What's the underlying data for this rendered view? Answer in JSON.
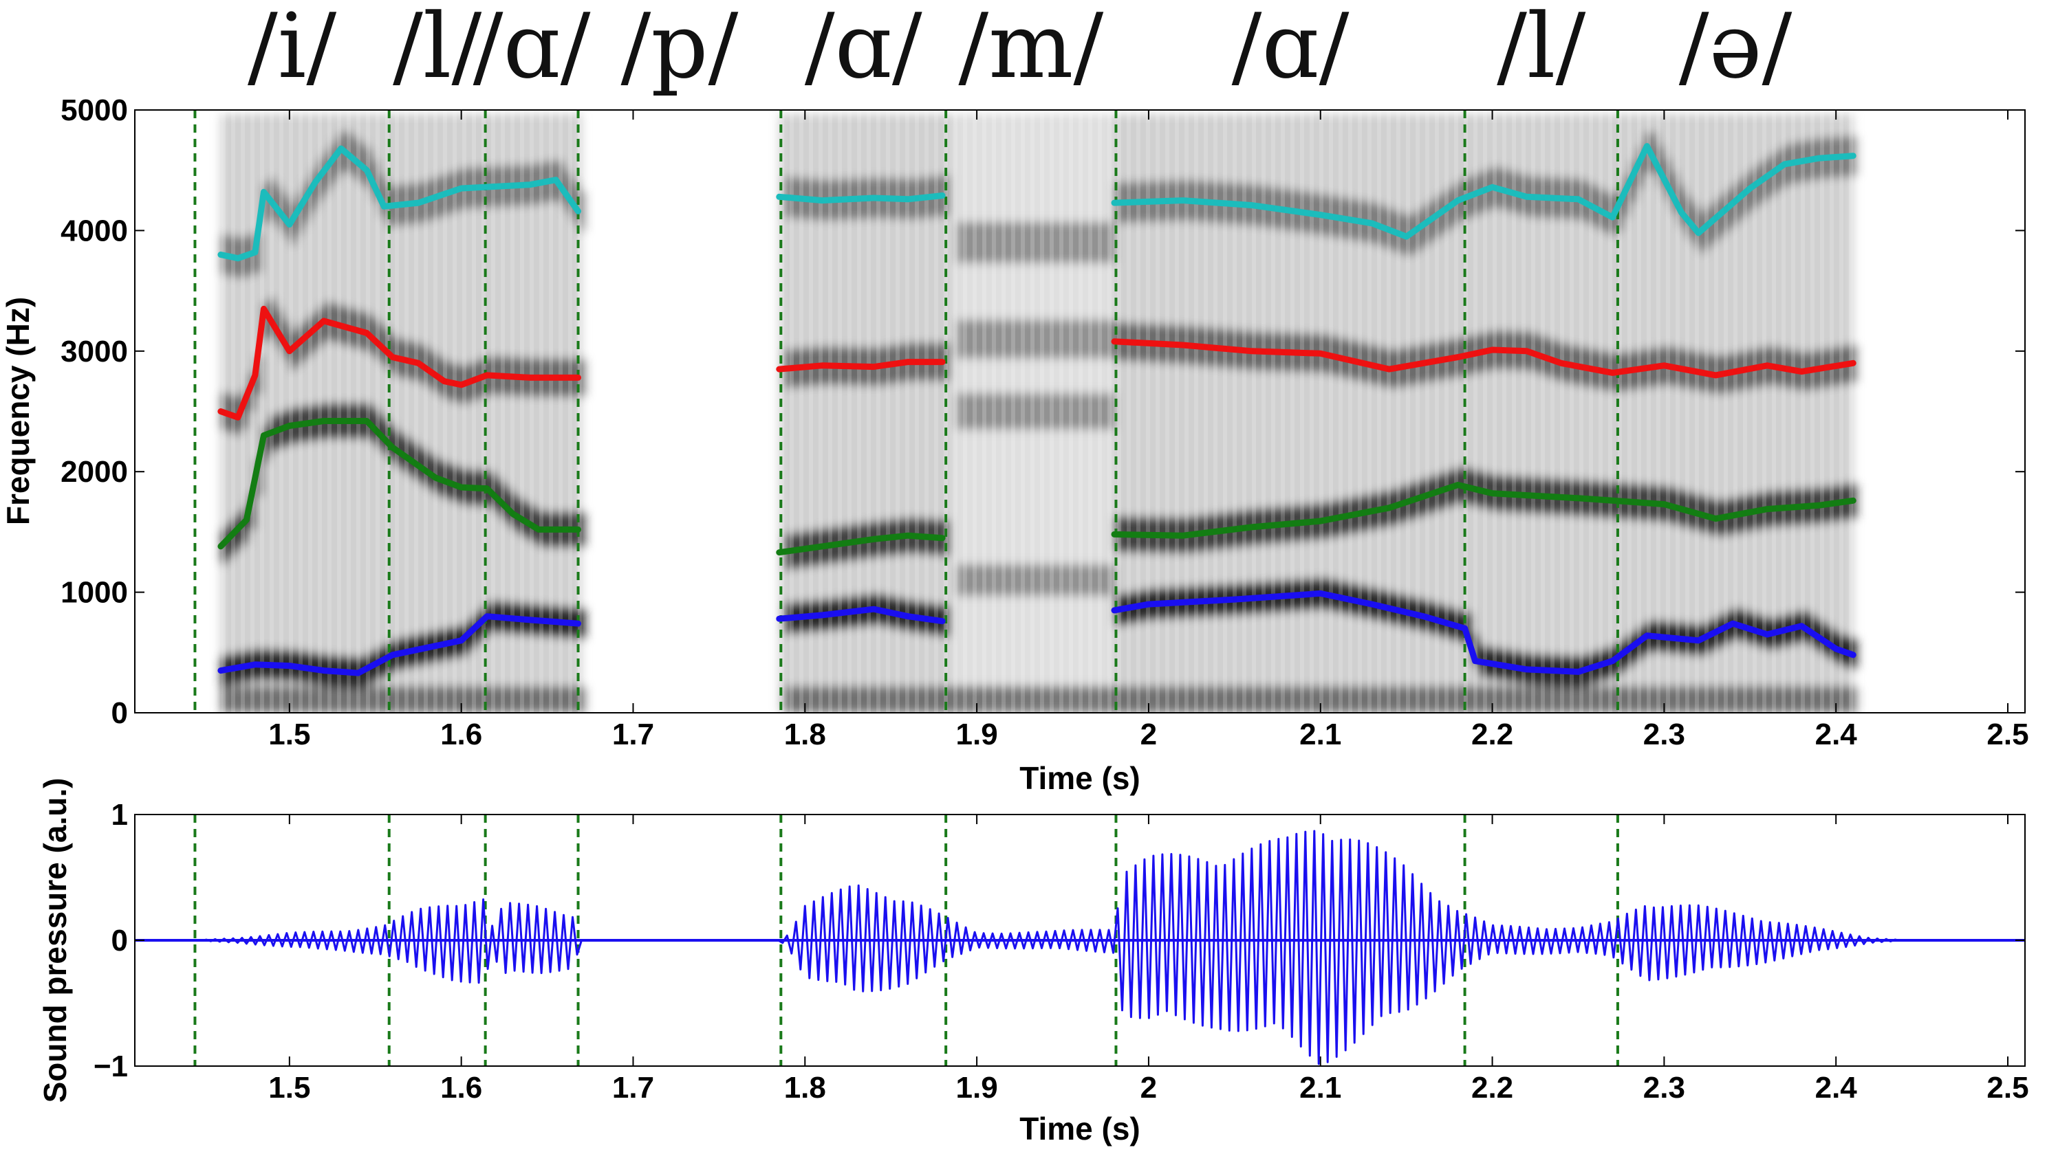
{
  "chart_data": [
    {
      "type": "heatmap",
      "title": "",
      "xlabel": "Time (s)",
      "ylabel": "Frequency (Hz)",
      "xlim": [
        1.41,
        2.51
      ],
      "ylim": [
        0,
        5000
      ],
      "xticks": [
        1.5,
        1.6,
        1.7,
        1.8,
        1.9,
        2,
        2.1,
        2.2,
        2.3,
        2.4,
        2.5
      ],
      "xtick_labels": [
        "1.5",
        "1.6",
        "1.7",
        "1.8",
        "1.9",
        "2",
        "2.1",
        "2.2",
        "2.3",
        "2.4",
        "2.5"
      ],
      "yticks": [
        0,
        1000,
        2000,
        3000,
        4000,
        5000
      ],
      "ytick_labels": [
        "0",
        "1000",
        "2000",
        "3000",
        "4000",
        "5000"
      ],
      "colormap": "grayscale",
      "voiced_regions": [
        [
          1.46,
          1.67
        ],
        [
          1.785,
          1.885
        ],
        [
          1.885,
          1.98
        ],
        [
          1.98,
          2.41
        ]
      ],
      "phonemes": [
        {
          "label": "/i/",
          "start": 1.445,
          "end": 1.558
        },
        {
          "label": "/l/",
          "start": 1.558,
          "end": 1.614
        },
        {
          "label": "/ɑ/",
          "start": 1.614,
          "end": 1.668
        },
        {
          "label": "/p/",
          "start": 1.668,
          "end": 1.786
        },
        {
          "label": "/ɑ/",
          "start": 1.786,
          "end": 1.882
        },
        {
          "label": "/m/",
          "start": 1.882,
          "end": 1.981
        },
        {
          "label": "/ɑ/",
          "start": 1.981,
          "end": 2.184
        },
        {
          "label": "/l/",
          "start": 2.184,
          "end": 2.273
        },
        {
          "label": "/ə/",
          "start": 2.273,
          "end": 2.41
        }
      ],
      "boundaries": [
        1.445,
        1.558,
        1.614,
        1.668,
        1.786,
        1.882,
        1.981,
        2.184,
        2.273
      ],
      "boundary_color": "#1a7a1a",
      "series": [
        {
          "color": "#1a0ff0",
          "segments": [
            [
              [
                1.46,
                350
              ],
              [
                1.48,
                400
              ],
              [
                1.5,
                390
              ],
              [
                1.52,
                350
              ],
              [
                1.54,
                330
              ],
              [
                1.56,
                480
              ],
              [
                1.58,
                540
              ],
              [
                1.6,
                600
              ],
              [
                1.615,
                800
              ],
              [
                1.64,
                770
              ],
              [
                1.668,
                740
              ]
            ],
            [
              [
                1.785,
                780
              ],
              [
                1.81,
                810
              ],
              [
                1.84,
                860
              ],
              [
                1.86,
                800
              ],
              [
                1.88,
                760
              ]
            ],
            [
              [
                1.98,
                850
              ],
              [
                2.0,
                900
              ],
              [
                2.05,
                940
              ],
              [
                2.1,
                990
              ],
              [
                2.13,
                900
              ],
              [
                2.16,
                800
              ],
              [
                2.184,
                700
              ],
              [
                2.19,
                430
              ],
              [
                2.22,
                360
              ],
              [
                2.25,
                340
              ],
              [
                2.27,
                430
              ],
              [
                2.29,
                640
              ],
              [
                2.32,
                600
              ],
              [
                2.34,
                740
              ],
              [
                2.36,
                650
              ],
              [
                2.38,
                720
              ],
              [
                2.4,
                530
              ],
              [
                2.41,
                480
              ]
            ]
          ]
        },
        {
          "color": "#137d13",
          "segments": [
            [
              [
                1.46,
                1380
              ],
              [
                1.475,
                1600
              ],
              [
                1.485,
                2300
              ],
              [
                1.5,
                2380
              ],
              [
                1.52,
                2420
              ],
              [
                1.545,
                2420
              ],
              [
                1.56,
                2200
              ],
              [
                1.585,
                1950
              ],
              [
                1.6,
                1870
              ],
              [
                1.615,
                1860
              ],
              [
                1.63,
                1650
              ],
              [
                1.645,
                1520
              ],
              [
                1.668,
                1520
              ]
            ],
            [
              [
                1.785,
                1330
              ],
              [
                1.81,
                1380
              ],
              [
                1.84,
                1440
              ],
              [
                1.86,
                1470
              ],
              [
                1.88,
                1450
              ]
            ],
            [
              [
                1.98,
                1480
              ],
              [
                2.02,
                1470
              ],
              [
                2.06,
                1540
              ],
              [
                2.1,
                1590
              ],
              [
                2.14,
                1700
              ],
              [
                2.18,
                1890
              ],
              [
                2.2,
                1820
              ],
              [
                2.25,
                1780
              ],
              [
                2.27,
                1760
              ],
              [
                2.3,
                1730
              ],
              [
                2.33,
                1610
              ],
              [
                2.36,
                1690
              ],
              [
                2.39,
                1720
              ],
              [
                2.41,
                1760
              ]
            ]
          ]
        },
        {
          "color": "#ee1111",
          "segments": [
            [
              [
                1.46,
                2500
              ],
              [
                1.47,
                2450
              ],
              [
                1.48,
                2800
              ],
              [
                1.485,
                3350
              ],
              [
                1.5,
                3000
              ],
              [
                1.52,
                3250
              ],
              [
                1.545,
                3150
              ],
              [
                1.56,
                2950
              ],
              [
                1.575,
                2900
              ],
              [
                1.59,
                2750
              ],
              [
                1.6,
                2720
              ],
              [
                1.615,
                2800
              ],
              [
                1.64,
                2780
              ],
              [
                1.668,
                2780
              ]
            ],
            [
              [
                1.785,
                2850
              ],
              [
                1.81,
                2880
              ],
              [
                1.84,
                2870
              ],
              [
                1.86,
                2910
              ],
              [
                1.88,
                2910
              ]
            ],
            [
              [
                1.98,
                3080
              ],
              [
                2.02,
                3050
              ],
              [
                2.06,
                3000
              ],
              [
                2.1,
                2980
              ],
              [
                2.14,
                2850
              ],
              [
                2.18,
                2950
              ],
              [
                2.2,
                3010
              ],
              [
                2.22,
                3000
              ],
              [
                2.24,
                2900
              ],
              [
                2.27,
                2820
              ],
              [
                2.3,
                2880
              ],
              [
                2.33,
                2800
              ],
              [
                2.36,
                2880
              ],
              [
                2.38,
                2830
              ],
              [
                2.41,
                2900
              ]
            ]
          ]
        },
        {
          "color": "#1cbcbc",
          "segments": [
            [
              [
                1.46,
                3800
              ],
              [
                1.47,
                3770
              ],
              [
                1.48,
                3820
              ],
              [
                1.485,
                4320
              ],
              [
                1.5,
                4050
              ],
              [
                1.515,
                4400
              ],
              [
                1.53,
                4680
              ],
              [
                1.545,
                4500
              ],
              [
                1.555,
                4200
              ],
              [
                1.575,
                4230
              ],
              [
                1.6,
                4350
              ],
              [
                1.64,
                4380
              ],
              [
                1.655,
                4420
              ],
              [
                1.668,
                4160
              ]
            ],
            [
              [
                1.785,
                4280
              ],
              [
                1.81,
                4250
              ],
              [
                1.84,
                4270
              ],
              [
                1.86,
                4260
              ],
              [
                1.88,
                4290
              ]
            ],
            [
              [
                1.98,
                4230
              ],
              [
                2.02,
                4250
              ],
              [
                2.06,
                4210
              ],
              [
                2.1,
                4130
              ],
              [
                2.13,
                4060
              ],
              [
                2.15,
                3950
              ],
              [
                2.18,
                4250
              ],
              [
                2.2,
                4360
              ],
              [
                2.22,
                4280
              ],
              [
                2.25,
                4260
              ],
              [
                2.27,
                4110
              ],
              [
                2.29,
                4700
              ],
              [
                2.31,
                4150
              ],
              [
                2.32,
                3980
              ],
              [
                2.35,
                4350
              ],
              [
                2.37,
                4550
              ],
              [
                2.39,
                4600
              ],
              [
                2.41,
                4620
              ]
            ]
          ]
        }
      ]
    },
    {
      "type": "line",
      "title": "",
      "xlabel": "Time (s)",
      "ylabel": "Sound pressure (a.u.)",
      "xlim": [
        1.41,
        2.51
      ],
      "ylim": [
        -1,
        1
      ],
      "xticks": [
        1.5,
        1.6,
        1.7,
        1.8,
        1.9,
        2,
        2.1,
        2.2,
        2.3,
        2.4,
        2.5
      ],
      "xtick_labels": [
        "1.5",
        "1.6",
        "1.7",
        "1.8",
        "1.9",
        "2",
        "2.1",
        "2.2",
        "2.3",
        "2.4",
        "2.5"
      ],
      "yticks": [
        -1,
        0,
        1
      ],
      "ytick_labels": [
        "−1",
        "0",
        "1"
      ],
      "boundaries": [
        1.445,
        1.558,
        1.614,
        1.668,
        1.786,
        1.882,
        1.981,
        2.184,
        2.273
      ],
      "boundary_color": "#1a7a1a",
      "series": [
        {
          "color": "#1a0ff0",
          "envelope": [
            [
              1.445,
              0.0
            ],
            [
              1.47,
              0.02
            ],
            [
              1.5,
              0.06
            ],
            [
              1.53,
              0.08
            ],
            [
              1.555,
              0.12
            ],
            [
              1.575,
              0.25
            ],
            [
              1.595,
              0.32
            ],
            [
              1.613,
              0.35
            ],
            [
              1.618,
              0.12
            ],
            [
              1.625,
              0.3
            ],
            [
              1.645,
              0.28
            ],
            [
              1.665,
              0.22
            ],
            [
              1.67,
              0.0
            ],
            [
              1.785,
              0.0
            ],
            [
              1.79,
              0.05
            ],
            [
              1.8,
              0.3
            ],
            [
              1.83,
              0.45
            ],
            [
              1.86,
              0.35
            ],
            [
              1.88,
              0.2
            ],
            [
              1.9,
              0.06
            ],
            [
              1.94,
              0.07
            ],
            [
              1.98,
              0.1
            ],
            [
              1.985,
              0.6
            ],
            [
              2.0,
              0.68
            ],
            [
              2.04,
              0.7
            ],
            [
              2.08,
              0.82
            ],
            [
              2.1,
              1.0
            ],
            [
              2.12,
              0.85
            ],
            [
              2.15,
              0.6
            ],
            [
              2.18,
              0.25
            ],
            [
              2.2,
              0.12
            ],
            [
              2.25,
              0.1
            ],
            [
              2.27,
              0.15
            ],
            [
              2.29,
              0.32
            ],
            [
              2.32,
              0.28
            ],
            [
              2.35,
              0.2
            ],
            [
              2.38,
              0.12
            ],
            [
              2.42,
              0.02
            ],
            [
              2.44,
              0.0
            ]
          ]
        }
      ]
    }
  ]
}
